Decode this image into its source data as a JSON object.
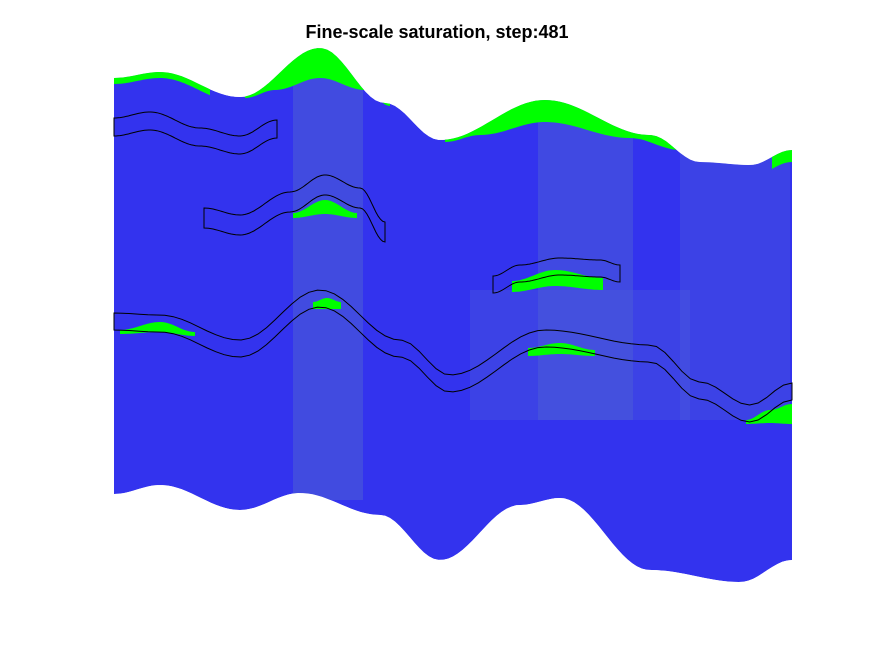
{
  "figure": {
    "title": "Fine-scale saturation, step:481"
  },
  "colors": {
    "water": "#3333ee",
    "water_dense": "#2f2fff",
    "co2": "#00ff00",
    "plume": "#4d5fd6",
    "outline": "#000000",
    "background": "#ffffff"
  },
  "chart_data": {
    "type": "heatmap",
    "title": "Fine-scale saturation, step:481",
    "field": "saturation",
    "step": 481,
    "axes_visible": false,
    "colorbar": false,
    "phases": [
      "water",
      "co2"
    ],
    "features": [
      "gas accumulation under top surface",
      "gas trapped beneath sealing layers",
      "vertical migration columns"
    ]
  }
}
